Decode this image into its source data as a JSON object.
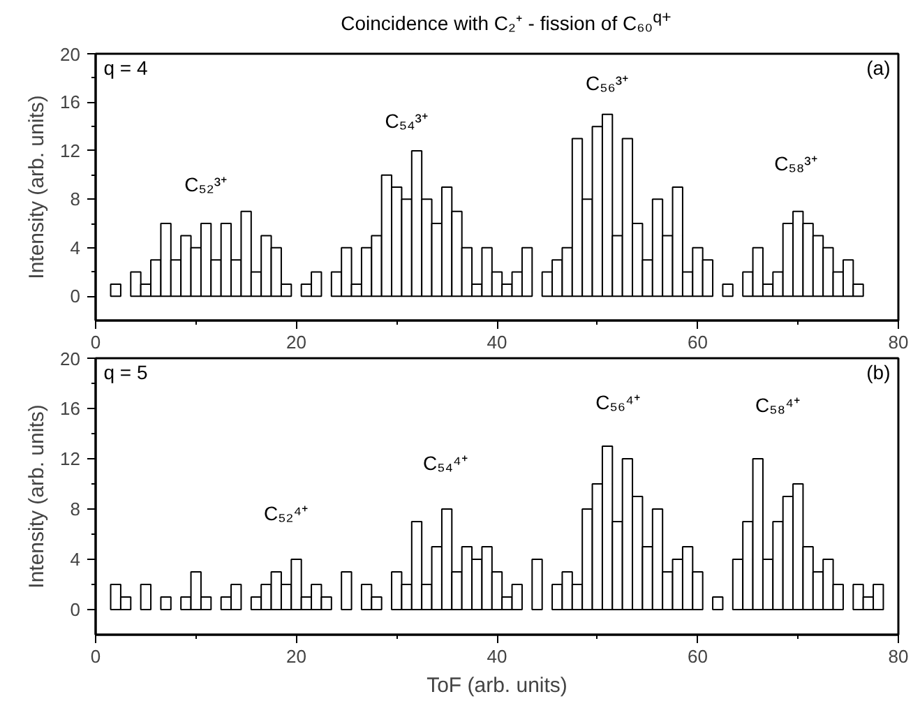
{
  "chart_data": [
    {
      "type": "histogram",
      "title": "Coincidence with C₂⁺ - fission of C₆₀$^{q+}$",
      "ylabel": "Intensity (arb. units)",
      "color": "#ffffff",
      "bins": [
        0.5,
        1.5,
        2.5,
        3.5,
        4.5,
        5.5,
        6.5,
        7.5,
        8.5,
        9.5,
        10.5,
        11.5,
        12.5,
        13.5,
        14.5,
        15.5,
        16.5,
        17.5,
        18.5,
        19.5,
        20.5,
        21.5,
        22.5,
        23.5,
        24.5,
        25.5,
        26.5,
        27.5,
        28.5,
        29.5,
        30.5,
        31.5,
        32.5,
        33.5,
        34.5,
        35.5,
        36.5,
        37.5,
        38.5,
        39.5,
        40.5,
        41.5,
        42.5,
        43.5,
        44.5,
        45.5,
        46.5,
        47.5,
        48.5,
        49.5,
        50.5,
        51.5,
        52.5,
        53.5,
        54.5,
        55.5,
        56.5,
        57.5,
        58.5,
        59.5,
        60.5,
        61.5,
        62.5,
        63.5,
        64.5,
        65.5,
        66.5,
        67.5,
        68.5,
        69.5,
        70.5,
        71.5,
        72.5,
        73.5,
        74.5,
        75.5,
        76.5,
        77.5
      ],
      "values": [
        0,
        1,
        0,
        2,
        1,
        3,
        6,
        3,
        5,
        4,
        6,
        3,
        6,
        3,
        7,
        2,
        5,
        4,
        1,
        0,
        1,
        2,
        0,
        2,
        4,
        1,
        4,
        5,
        10,
        9,
        8,
        12,
        8,
        6,
        9,
        7,
        4,
        1,
        4,
        2,
        1,
        2,
        4,
        0,
        2,
        3,
        4,
        13,
        8,
        14,
        15,
        5,
        13,
        6,
        3,
        8,
        5,
        9,
        2,
        4,
        3,
        0,
        1,
        0,
        2,
        4,
        1,
        2,
        6,
        7,
        6,
        5,
        4,
        2,
        3,
        1,
        0
      ],
      "xlim": [
        0,
        80
      ],
      "xticks": [
        0,
        {
          "value": 10,
          "label": null
        },
        20,
        {
          "value": 30,
          "label": null
        },
        40,
        {
          "value": 50,
          "label": null
        },
        60,
        {
          "value": 70,
          "label": null
        },
        80
      ],
      "ylim": [
        -2,
        20
      ],
      "yticks": [
        0,
        {
          "value": 2,
          "label": null
        },
        4,
        {
          "value": 6,
          "label": null
        },
        8,
        {
          "value": 10,
          "label": null
        },
        12,
        {
          "value": 14,
          "label": null
        },
        16,
        {
          "value": 18,
          "label": null
        },
        20
      ],
      "annotations": [
        "q = 4",
        "(a)",
        "C₅₂³⁺",
        "C₅₄³⁺",
        "C₅₆³⁺",
        "C₅₈³⁺"
      ]
    },
    {
      "type": "histogram",
      "xlabel": "ToF (arb. units)",
      "ylabel": "Intensity (arb. units)",
      "color": "#ffffff",
      "bins": [
        0.5,
        1.5,
        2.5,
        3.5,
        4.5,
        5.5,
        6.5,
        7.5,
        8.5,
        9.5,
        10.5,
        11.5,
        12.5,
        13.5,
        14.5,
        15.5,
        16.5,
        17.5,
        18.5,
        19.5,
        20.5,
        21.5,
        22.5,
        23.5,
        24.5,
        25.5,
        26.5,
        27.5,
        28.5,
        29.5,
        30.5,
        31.5,
        32.5,
        33.5,
        34.5,
        35.5,
        36.5,
        37.5,
        38.5,
        39.5,
        40.5,
        41.5,
        42.5,
        43.5,
        44.5,
        45.5,
        46.5,
        47.5,
        48.5,
        49.5,
        50.5,
        51.5,
        52.5,
        53.5,
        54.5,
        55.5,
        56.5,
        57.5,
        58.5,
        59.5,
        60.5,
        61.5,
        62.5,
        63.5,
        64.5,
        65.5,
        66.5,
        67.5,
        68.5,
        69.5,
        70.5,
        71.5,
        72.5,
        73.5,
        74.5,
        75.5,
        76.5,
        77.5,
        78.5,
        79.5
      ],
      "values": [
        0,
        2,
        1,
        0,
        2,
        0,
        1,
        0,
        1,
        3,
        1,
        0,
        1,
        2,
        0,
        1,
        2,
        3,
        2,
        4,
        1,
        2,
        1,
        0,
        3,
        0,
        2,
        1,
        0,
        3,
        2,
        7,
        2,
        5,
        8,
        3,
        5,
        4,
        5,
        3,
        1,
        2,
        0,
        4,
        0,
        2,
        3,
        2,
        8,
        10,
        13,
        7,
        12,
        9,
        5,
        8,
        3,
        4,
        5,
        3,
        0,
        1,
        0,
        4,
        7,
        12,
        4,
        7,
        9,
        10,
        5,
        3,
        4,
        2,
        0,
        2,
        1,
        2,
        0
      ],
      "xlim": [
        0,
        80
      ],
      "xticks": [
        0,
        {
          "value": 10,
          "label": null
        },
        20,
        {
          "value": 30,
          "label": null
        },
        40,
        {
          "value": 50,
          "label": null
        },
        60,
        {
          "value": 70,
          "label": null
        },
        80
      ],
      "ylim": [
        -2,
        20
      ],
      "yticks": [
        0,
        {
          "value": 2,
          "label": null
        },
        4,
        {
          "value": 6,
          "label": null
        },
        8,
        {
          "value": 10,
          "label": null
        },
        12,
        {
          "value": 14,
          "label": null
        },
        16,
        {
          "value": 18,
          "label": null
        },
        20
      ],
      "annotations": [
        "q = 5",
        "(b)",
        "C₅₂⁴⁺",
        "C₅₄⁴⁺",
        "C₅₆⁴⁺",
        "C₅₈⁴⁺"
      ]
    }
  ]
}
